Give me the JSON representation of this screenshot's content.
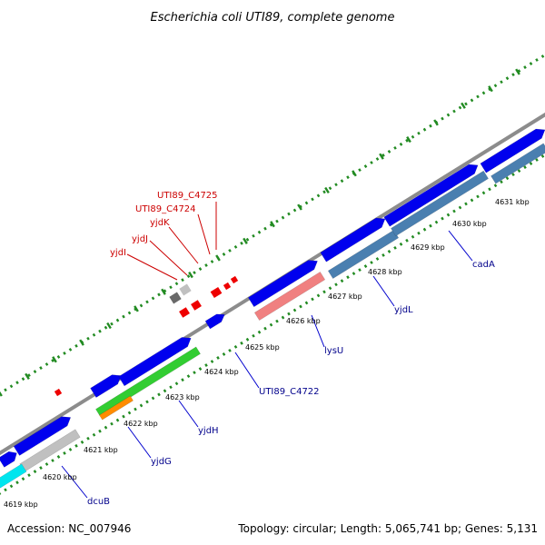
{
  "title": "Escherichia coli UTI89, complete genome",
  "footer": {
    "accession": "Accession: NC_007946",
    "summary": "Topology: circular; Length: 5,065,741 bp; Genes: 5,131"
  },
  "colors": {
    "backbone": "#8c8c8c",
    "tick_outer": "#228b22",
    "forward_gene": "#0000ee",
    "reverse_gene": "#4a7fb0",
    "pseudo_gene": "#f08080",
    "hypothetical_gene": "#c0c0c0",
    "green_gene": "#32cd32",
    "orange_gene": "#ff8c00",
    "cyan_gene": "#00e5ee",
    "small_red": "#ee0000",
    "small_dark": "#696969",
    "label_blue": "#00008b",
    "label_red": "#cc0000"
  },
  "ruler_ticks": [
    "4619 kbp",
    "4620 kbp",
    "4621 kbp",
    "4622 kbp",
    "4623 kbp",
    "4624 kbp",
    "4625 kbp",
    "4626 kbp",
    "4627 kbp",
    "4628 kbp",
    "4629 kbp",
    "4630 kbp",
    "4631 kbp"
  ],
  "gene_labels_blue": [
    "dcuB",
    "yjdG",
    "yjdH",
    "UTI89_C4722",
    "lysU",
    "yjdL",
    "cadA"
  ],
  "gene_labels_red": [
    "yjdI",
    "yjdJ",
    "yjdK",
    "UTI89_C4724",
    "UTI89_C4725"
  ]
}
